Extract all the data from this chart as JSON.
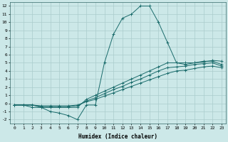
{
  "xlabel": "Humidex (Indice chaleur)",
  "ylabel": "",
  "background_color": "#cce8e8",
  "grid_color": "#aacccc",
  "line_color": "#1a6b6b",
  "xlim": [
    -0.5,
    23.5
  ],
  "ylim": [
    -2.5,
    12.5
  ],
  "xticks": [
    0,
    1,
    2,
    3,
    4,
    5,
    6,
    7,
    8,
    9,
    10,
    11,
    12,
    13,
    14,
    15,
    16,
    17,
    18,
    19,
    20,
    21,
    22,
    23
  ],
  "yticks": [
    -2,
    -1,
    0,
    1,
    2,
    3,
    4,
    5,
    6,
    7,
    8,
    9,
    10,
    11,
    12
  ],
  "series": [
    {
      "x": [
        0,
        1,
        2,
        3,
        4,
        5,
        6,
        7,
        8,
        9,
        10,
        11,
        12,
        13,
        14,
        15,
        16,
        17,
        18,
        19,
        20,
        21,
        22,
        23
      ],
      "y": [
        -0.2,
        -0.2,
        -0.5,
        -0.5,
        -1.0,
        -1.2,
        -1.5,
        -2.0,
        -0.2,
        -0.2,
        5.0,
        8.5,
        10.5,
        11.0,
        12.0,
        12.0,
        10.0,
        7.5,
        5.0,
        5.0,
        5.0,
        5.2,
        5.2,
        4.8
      ]
    },
    {
      "x": [
        0,
        1,
        2,
        3,
        4,
        5,
        6,
        7,
        8,
        9,
        10,
        11,
        12,
        13,
        14,
        15,
        16,
        17,
        18,
        19,
        20,
        21,
        22,
        23
      ],
      "y": [
        -0.2,
        -0.2,
        -0.2,
        -0.5,
        -0.5,
        -0.5,
        -0.5,
        -0.5,
        0.5,
        1.0,
        1.5,
        2.0,
        2.5,
        3.0,
        3.5,
        4.0,
        4.5,
        5.0,
        5.0,
        4.8,
        5.0,
        5.1,
        5.3,
        5.2
      ]
    },
    {
      "x": [
        0,
        1,
        2,
        3,
        4,
        5,
        6,
        7,
        8,
        9,
        10,
        11,
        12,
        13,
        14,
        15,
        16,
        17,
        18,
        19,
        20,
        21,
        22,
        23
      ],
      "y": [
        -0.2,
        -0.2,
        -0.2,
        -0.4,
        -0.4,
        -0.4,
        -0.4,
        -0.3,
        0.3,
        0.7,
        1.2,
        1.7,
        2.1,
        2.6,
        3.0,
        3.5,
        4.0,
        4.4,
        4.5,
        4.6,
        4.8,
        4.9,
        5.0,
        4.6
      ]
    },
    {
      "x": [
        0,
        1,
        2,
        3,
        4,
        5,
        6,
        7,
        8,
        9,
        10,
        11,
        12,
        13,
        14,
        15,
        16,
        17,
        18,
        19,
        20,
        21,
        22,
        23
      ],
      "y": [
        -0.2,
        -0.2,
        -0.2,
        -0.3,
        -0.3,
        -0.3,
        -0.3,
        -0.2,
        0.2,
        0.5,
        0.9,
        1.3,
        1.7,
        2.1,
        2.5,
        2.9,
        3.3,
        3.7,
        4.0,
        4.1,
        4.3,
        4.5,
        4.6,
        4.4
      ]
    }
  ]
}
